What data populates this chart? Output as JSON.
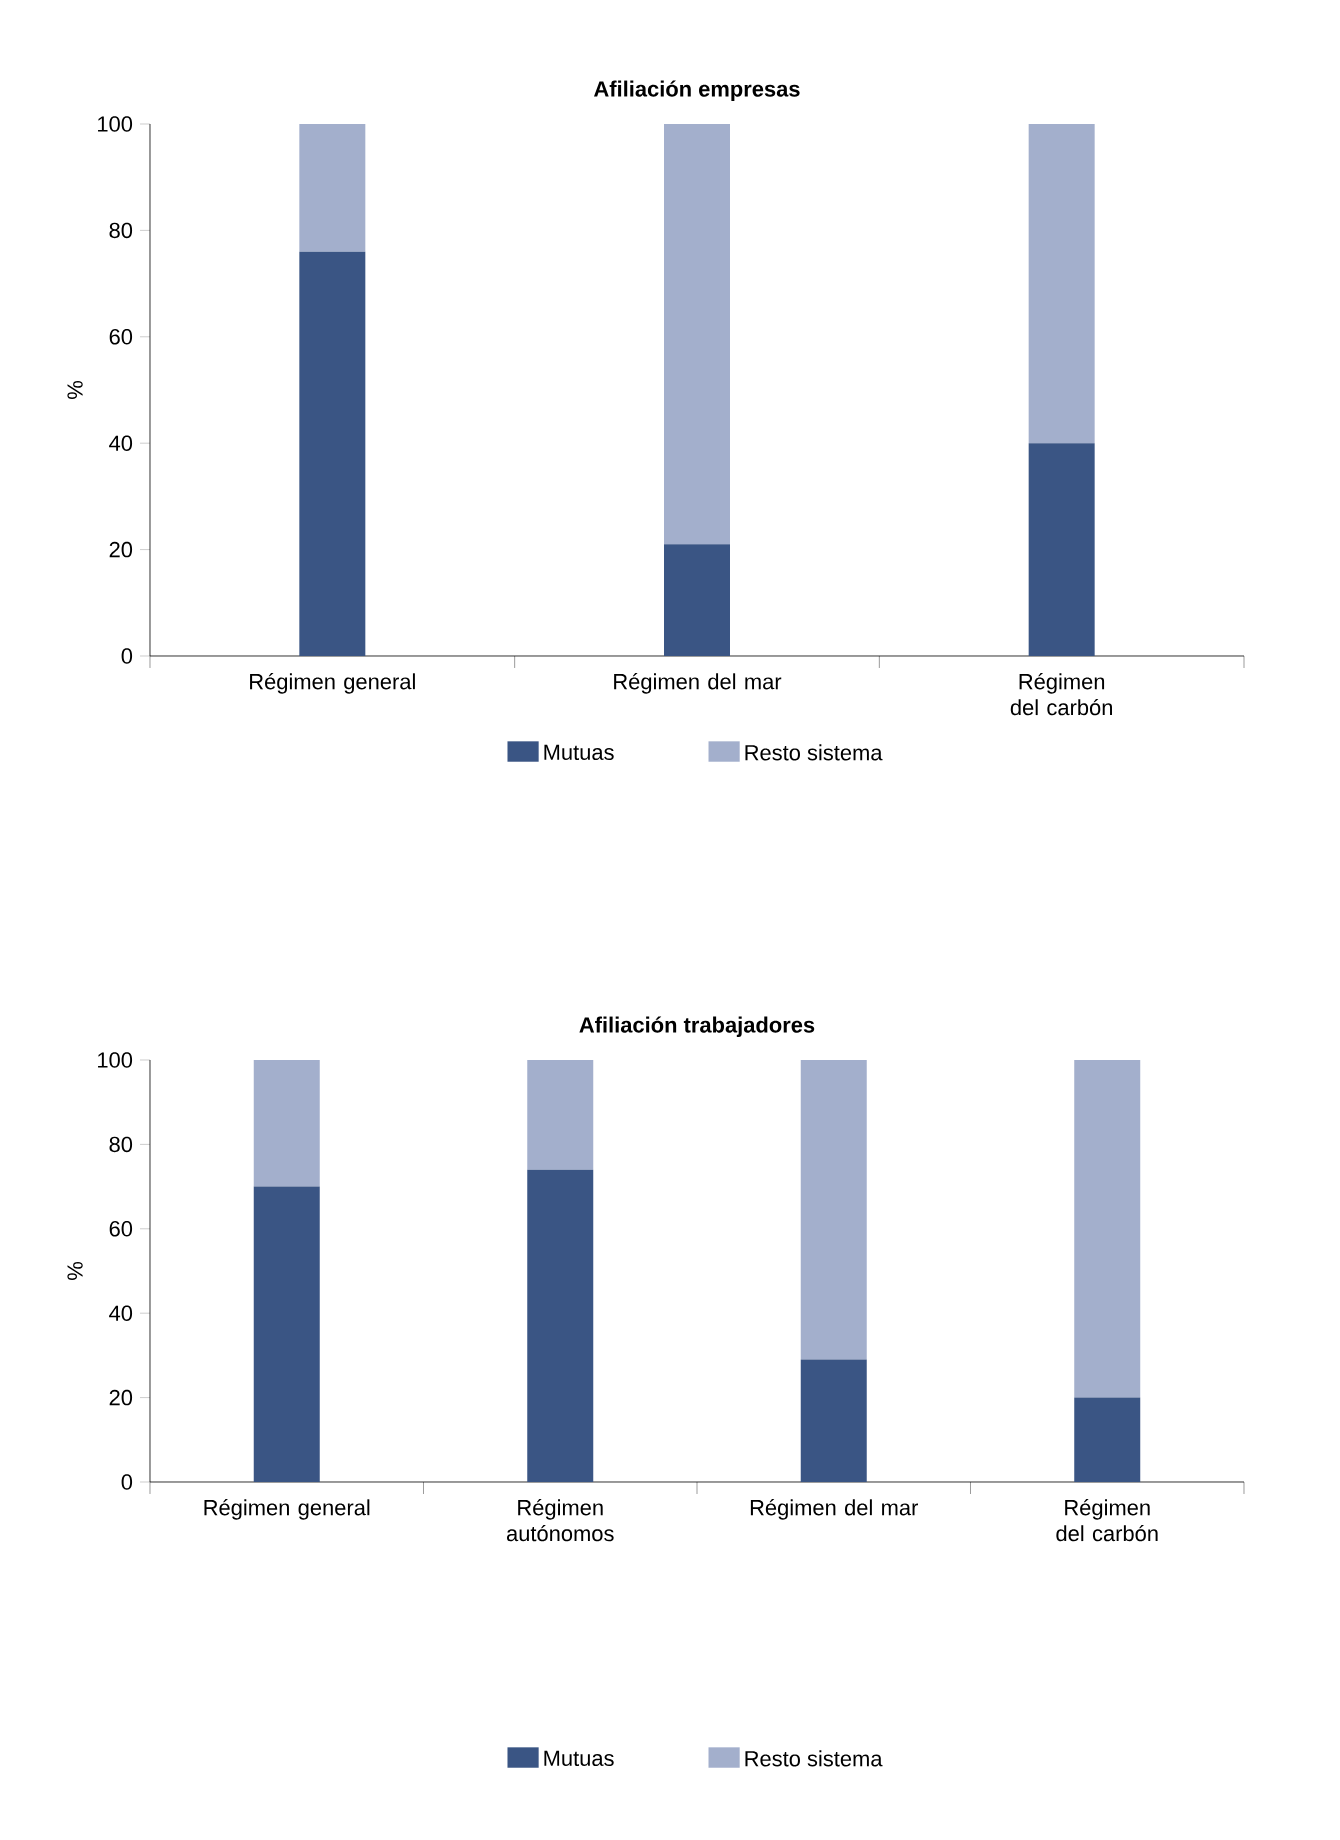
{
  "chart_data": [
    {
      "type": "bar",
      "title": "Afiliación empresas",
      "ylabel": "%",
      "stacked": true,
      "legend": "bottom",
      "categories": [
        "Régimen general",
        "Régimen del mar",
        "Régimen del carbón"
      ],
      "ylim": [
        0,
        100
      ],
      "yticks": [
        0,
        20,
        40,
        60,
        80,
        100
      ],
      "series": [
        {
          "name": "Mutuas",
          "color": "#3a5584",
          "values": [
            76,
            21,
            40
          ]
        },
        {
          "name": "Resto sistema",
          "color": "#a3afcc",
          "values": [
            24,
            79,
            60
          ]
        }
      ]
    },
    {
      "type": "bar",
      "title": "Afiliación trabajadores",
      "ylabel": "%",
      "stacked": true,
      "legend": "bottom",
      "categories": [
        "Régimen general",
        "Régimen autónomos",
        "Régimen del mar",
        "Régimen del carbón"
      ],
      "ylim": [
        0,
        100
      ],
      "yticks": [
        0,
        20,
        40,
        60,
        80,
        100
      ],
      "series": [
        {
          "name": "Mutuas",
          "color": "#3a5584",
          "values": [
            70,
            74,
            29,
            20
          ]
        },
        {
          "name": "Resto sistema",
          "color": "#a3afcc",
          "values": [
            30,
            26,
            71,
            80
          ]
        }
      ]
    }
  ]
}
